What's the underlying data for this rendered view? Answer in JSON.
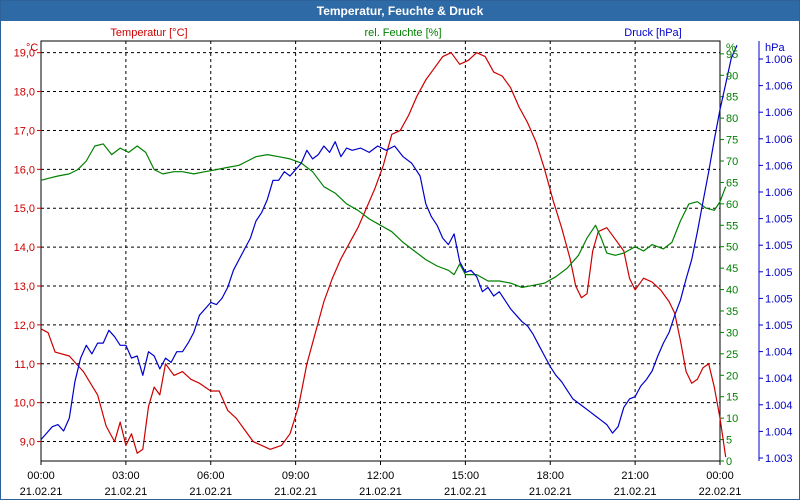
{
  "window": {
    "title": "Temperatur, Feuchte & Druck"
  },
  "chart_data": {
    "type": "line",
    "title": "Temperatur, Feuchte & Druck",
    "x": {
      "tick_times": [
        "00:00",
        "03:00",
        "06:00",
        "09:00",
        "12:00",
        "15:00",
        "18:00",
        "21:00",
        "00:00"
      ],
      "tick_dates": [
        "21.02.21",
        "21.02.21",
        "21.02.21",
        "21.02.21",
        "21.02.21",
        "21.02.21",
        "21.02.21",
        "21.02.21",
        "22.02.21"
      ],
      "range_hours": [
        0,
        24
      ]
    },
    "axes": {
      "temperature": {
        "unit": "°C",
        "label": "Temperatur [°C]",
        "range": [
          8.5,
          19.3
        ],
        "ticks": [
          "9,0",
          "10,0",
          "11,0",
          "12,0",
          "13,0",
          "14,0",
          "15,0",
          "16,0",
          "17,0",
          "18,0",
          "19,0"
        ],
        "color": "#cc0000"
      },
      "humidity": {
        "unit": "%",
        "label": "rel. Feuchte [%]",
        "range": [
          0,
          98
        ],
        "ticks": [
          "0",
          "5",
          "10",
          "15",
          "20",
          "25",
          "30",
          "35",
          "40",
          "45",
          "50",
          "55",
          "60",
          "65",
          "70",
          "75",
          "80",
          "85",
          "90",
          "95"
        ],
        "color": "#008000"
      },
      "pressure": {
        "unit": "hPa",
        "label": "Druck [hPa]",
        "tick_labels": [
          "1.003",
          "1.004",
          "1.004",
          "1.004",
          "1.004",
          "1.005",
          "1.005",
          "1.005",
          "1.005",
          "1.005",
          "1.006",
          "1.006",
          "1.006",
          "1.006",
          "1.006",
          "1.006"
        ],
        "color": "#0000cc"
      }
    },
    "grid": true,
    "series": [
      {
        "name": "Temperatur",
        "axis": "temperature",
        "color": "#cc0000",
        "points": [
          [
            0.0,
            11.9
          ],
          [
            0.25,
            11.8
          ],
          [
            0.5,
            11.3
          ],
          [
            1.0,
            11.2
          ],
          [
            1.5,
            10.8
          ],
          [
            2.0,
            10.2
          ],
          [
            2.3,
            9.4
          ],
          [
            2.6,
            9.0
          ],
          [
            2.8,
            9.5
          ],
          [
            3.0,
            8.9
          ],
          [
            3.2,
            9.2
          ],
          [
            3.4,
            8.7
          ],
          [
            3.6,
            8.8
          ],
          [
            3.8,
            9.9
          ],
          [
            4.0,
            10.4
          ],
          [
            4.2,
            10.2
          ],
          [
            4.4,
            11.0
          ],
          [
            4.7,
            10.7
          ],
          [
            5.0,
            10.8
          ],
          [
            5.3,
            10.6
          ],
          [
            5.6,
            10.5
          ],
          [
            6.0,
            10.3
          ],
          [
            6.3,
            10.3
          ],
          [
            6.6,
            9.8
          ],
          [
            6.9,
            9.6
          ],
          [
            7.2,
            9.3
          ],
          [
            7.5,
            9.0
          ],
          [
            7.8,
            8.9
          ],
          [
            8.1,
            8.8
          ],
          [
            8.5,
            8.9
          ],
          [
            8.8,
            9.2
          ],
          [
            9.1,
            9.9
          ],
          [
            9.4,
            11.0
          ],
          [
            9.7,
            11.8
          ],
          [
            10.0,
            12.6
          ],
          [
            10.3,
            13.2
          ],
          [
            10.6,
            13.7
          ],
          [
            10.9,
            14.1
          ],
          [
            11.2,
            14.5
          ],
          [
            11.5,
            15.0
          ],
          [
            11.8,
            15.5
          ],
          [
            12.1,
            16.1
          ],
          [
            12.4,
            16.9
          ],
          [
            12.7,
            17.0
          ],
          [
            13.0,
            17.4
          ],
          [
            13.3,
            17.9
          ],
          [
            13.6,
            18.3
          ],
          [
            13.9,
            18.6
          ],
          [
            14.2,
            18.9
          ],
          [
            14.5,
            19.0
          ],
          [
            14.8,
            18.7
          ],
          [
            15.1,
            18.8
          ],
          [
            15.4,
            19.0
          ],
          [
            15.7,
            18.9
          ],
          [
            16.0,
            18.5
          ],
          [
            16.3,
            18.4
          ],
          [
            16.6,
            18.1
          ],
          [
            16.9,
            17.6
          ],
          [
            17.2,
            17.2
          ],
          [
            17.5,
            16.7
          ],
          [
            17.8,
            16.0
          ],
          [
            18.1,
            15.2
          ],
          [
            18.4,
            14.5
          ],
          [
            18.7,
            13.7
          ],
          [
            18.9,
            13.0
          ],
          [
            19.1,
            12.7
          ],
          [
            19.3,
            12.8
          ],
          [
            19.5,
            13.9
          ],
          [
            19.7,
            14.4
          ],
          [
            20.0,
            14.5
          ],
          [
            20.3,
            14.2
          ],
          [
            20.6,
            13.9
          ],
          [
            20.8,
            13.2
          ],
          [
            21.0,
            12.9
          ],
          [
            21.3,
            13.2
          ],
          [
            21.6,
            13.1
          ],
          [
            21.9,
            12.9
          ],
          [
            22.2,
            12.6
          ],
          [
            22.4,
            12.3
          ],
          [
            22.6,
            11.6
          ],
          [
            22.8,
            10.8
          ],
          [
            23.0,
            10.5
          ],
          [
            23.2,
            10.6
          ],
          [
            23.4,
            10.9
          ],
          [
            23.6,
            11.0
          ],
          [
            23.8,
            10.4
          ],
          [
            24.0,
            9.6
          ],
          [
            24.2,
            8.6
          ]
        ]
      },
      {
        "name": "rel. Feuchte",
        "axis": "humidity",
        "color": "#008000",
        "points": [
          [
            0.0,
            65.5
          ],
          [
            0.3,
            66.0
          ],
          [
            0.6,
            66.5
          ],
          [
            1.0,
            67.0
          ],
          [
            1.3,
            68.0
          ],
          [
            1.6,
            70.0
          ],
          [
            1.9,
            73.5
          ],
          [
            2.2,
            74.0
          ],
          [
            2.5,
            71.5
          ],
          [
            2.8,
            73.0
          ],
          [
            3.1,
            72.0
          ],
          [
            3.4,
            73.5
          ],
          [
            3.7,
            72.0
          ],
          [
            4.0,
            68.0
          ],
          [
            4.3,
            67.0
          ],
          [
            4.7,
            67.5
          ],
          [
            5.0,
            67.5
          ],
          [
            5.4,
            67.0
          ],
          [
            5.8,
            67.5
          ],
          [
            6.2,
            68.0
          ],
          [
            6.6,
            68.5
          ],
          [
            7.0,
            69.0
          ],
          [
            7.3,
            70.0
          ],
          [
            7.6,
            71.0
          ],
          [
            8.0,
            71.5
          ],
          [
            8.4,
            71.0
          ],
          [
            8.8,
            70.5
          ],
          [
            9.2,
            69.5
          ],
          [
            9.6,
            67.5
          ],
          [
            10.0,
            64.0
          ],
          [
            10.4,
            62.5
          ],
          [
            10.8,
            60.0
          ],
          [
            11.2,
            58.5
          ],
          [
            11.6,
            56.5
          ],
          [
            12.0,
            55.0
          ],
          [
            12.4,
            53.5
          ],
          [
            12.8,
            51.0
          ],
          [
            13.2,
            49.0
          ],
          [
            13.6,
            47.0
          ],
          [
            14.0,
            45.5
          ],
          [
            14.4,
            44.5
          ],
          [
            14.6,
            43.5
          ],
          [
            14.8,
            46.0
          ],
          [
            15.0,
            43.5
          ],
          [
            15.4,
            43.5
          ],
          [
            15.8,
            42.0
          ],
          [
            16.2,
            42.0
          ],
          [
            16.6,
            41.5
          ],
          [
            17.0,
            40.5
          ],
          [
            17.4,
            41.0
          ],
          [
            17.8,
            41.5
          ],
          [
            18.2,
            43.0
          ],
          [
            18.6,
            45.0
          ],
          [
            19.0,
            48.0
          ],
          [
            19.3,
            52.0
          ],
          [
            19.6,
            55.0
          ],
          [
            19.8,
            52.0
          ],
          [
            20.0,
            48.5
          ],
          [
            20.3,
            48.0
          ],
          [
            20.6,
            48.5
          ],
          [
            21.0,
            50.0
          ],
          [
            21.3,
            49.0
          ],
          [
            21.6,
            50.5
          ],
          [
            22.0,
            49.5
          ],
          [
            22.3,
            51.0
          ],
          [
            22.6,
            56.0
          ],
          [
            22.9,
            60.0
          ],
          [
            23.2,
            60.5
          ],
          [
            23.5,
            59.0
          ],
          [
            23.8,
            58.5
          ],
          [
            24.0,
            60.5
          ],
          [
            24.2,
            64.0
          ]
        ]
      },
      {
        "name": "Druck",
        "axis": "pressure",
        "color": "#0000cc",
        "points_axis_units": [
          [
            0.0,
            5.0
          ],
          [
            0.2,
            6.5
          ],
          [
            0.4,
            8.0
          ],
          [
            0.6,
            8.5
          ],
          [
            0.8,
            7.0
          ],
          [
            1.0,
            10.0
          ],
          [
            1.2,
            18.5
          ],
          [
            1.4,
            24.0
          ],
          [
            1.6,
            27.0
          ],
          [
            1.8,
            25.0
          ],
          [
            2.0,
            27.5
          ],
          [
            2.2,
            27.5
          ],
          [
            2.4,
            30.5
          ],
          [
            2.6,
            29.0
          ],
          [
            2.8,
            27.0
          ],
          [
            3.0,
            27.0
          ],
          [
            3.2,
            24.0
          ],
          [
            3.4,
            24.5
          ],
          [
            3.6,
            20.0
          ],
          [
            3.8,
            25.5
          ],
          [
            4.0,
            24.5
          ],
          [
            4.2,
            21.5
          ],
          [
            4.4,
            24.0
          ],
          [
            4.6,
            23.0
          ],
          [
            4.8,
            25.5
          ],
          [
            5.0,
            25.5
          ],
          [
            5.2,
            27.5
          ],
          [
            5.4,
            30.0
          ],
          [
            5.6,
            34.0
          ],
          [
            5.8,
            35.5
          ],
          [
            6.0,
            37.0
          ],
          [
            6.2,
            36.5
          ],
          [
            6.4,
            38.0
          ],
          [
            6.6,
            40.5
          ],
          [
            6.8,
            44.5
          ],
          [
            7.0,
            47.0
          ],
          [
            7.2,
            49.5
          ],
          [
            7.4,
            52.0
          ],
          [
            7.6,
            56.0
          ],
          [
            7.8,
            58.0
          ],
          [
            8.0,
            61.0
          ],
          [
            8.2,
            65.5
          ],
          [
            8.4,
            65.5
          ],
          [
            8.6,
            67.5
          ],
          [
            8.8,
            66.5
          ],
          [
            9.0,
            68.0
          ],
          [
            9.2,
            69.5
          ],
          [
            9.4,
            72.5
          ],
          [
            9.6,
            70.5
          ],
          [
            9.8,
            71.5
          ],
          [
            10.0,
            73.5
          ],
          [
            10.2,
            72.0
          ],
          [
            10.4,
            74.5
          ],
          [
            10.6,
            71.0
          ],
          [
            10.8,
            73.0
          ],
          [
            11.0,
            72.5
          ],
          [
            11.3,
            73.0
          ],
          [
            11.6,
            72.0
          ],
          [
            11.9,
            73.5
          ],
          [
            12.2,
            72.5
          ],
          [
            12.5,
            73.5
          ],
          [
            12.8,
            71.0
          ],
          [
            13.1,
            69.5
          ],
          [
            13.4,
            66.5
          ],
          [
            13.6,
            60.0
          ],
          [
            13.8,
            57.0
          ],
          [
            14.0,
            55.0
          ],
          [
            14.2,
            52.0
          ],
          [
            14.4,
            50.5
          ],
          [
            14.6,
            53.0
          ],
          [
            14.8,
            46.5
          ],
          [
            15.0,
            44.0
          ],
          [
            15.2,
            44.5
          ],
          [
            15.4,
            43.0
          ],
          [
            15.6,
            39.5
          ],
          [
            15.8,
            40.5
          ],
          [
            16.0,
            38.5
          ],
          [
            16.2,
            39.5
          ],
          [
            16.4,
            37.5
          ],
          [
            16.6,
            35.5
          ],
          [
            16.8,
            34.0
          ],
          [
            17.0,
            32.5
          ],
          [
            17.2,
            31.5
          ],
          [
            17.4,
            29.5
          ],
          [
            17.6,
            27.0
          ],
          [
            17.8,
            24.5
          ],
          [
            18.0,
            22.0
          ],
          [
            18.2,
            20.0
          ],
          [
            18.4,
            18.5
          ],
          [
            18.6,
            16.5
          ],
          [
            18.8,
            14.5
          ],
          [
            19.0,
            13.5
          ],
          [
            19.2,
            12.5
          ],
          [
            19.4,
            11.5
          ],
          [
            19.6,
            10.5
          ],
          [
            19.8,
            9.5
          ],
          [
            20.0,
            8.5
          ],
          [
            20.2,
            6.5
          ],
          [
            20.4,
            8.0
          ],
          [
            20.6,
            12.5
          ],
          [
            20.8,
            14.5
          ],
          [
            21.0,
            15.0
          ],
          [
            21.2,
            17.5
          ],
          [
            21.4,
            19.0
          ],
          [
            21.6,
            21.0
          ],
          [
            21.8,
            24.5
          ],
          [
            22.0,
            27.5
          ],
          [
            22.2,
            30.0
          ],
          [
            22.4,
            34.0
          ],
          [
            22.6,
            37.5
          ],
          [
            22.8,
            42.5
          ],
          [
            23.0,
            47.0
          ],
          [
            23.2,
            53.5
          ],
          [
            23.4,
            60.5
          ],
          [
            23.6,
            67.5
          ],
          [
            23.8,
            75.0
          ],
          [
            24.0,
            82.0
          ],
          [
            24.2,
            88.0
          ],
          [
            24.4,
            94.0
          ],
          [
            24.6,
            97.0
          ]
        ]
      }
    ]
  }
}
